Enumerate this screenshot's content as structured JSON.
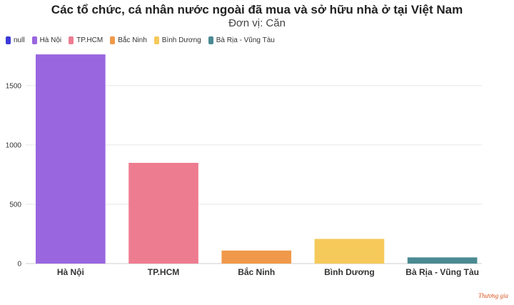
{
  "chart_data": {
    "type": "bar",
    "title": "Các tổ chức, cá nhân nước ngoài đã mua và sở hữu nhà ở tại Việt Nam",
    "subtitle": "Đơn vị: Căn",
    "legend_placement": "top-left",
    "legend": [
      {
        "label": "null",
        "color": "#3b3bd6"
      },
      {
        "label": "Hà Nội",
        "color": "#9966e0"
      },
      {
        "label": "TP.HCM",
        "color": "#ee7c90"
      },
      {
        "label": "Bắc Ninh",
        "color": "#f0994a"
      },
      {
        "label": "Bình Dương",
        "color": "#f5c95a"
      },
      {
        "label": "Bà Rịa - Vũng Tàu",
        "color": "#4a8a92"
      }
    ],
    "categories": [
      "Hà Nội",
      "TP.HCM",
      "Bắc Ninh",
      "Bình Dương",
      "Bà Rịa - Vũng Tàu"
    ],
    "values": [
      1763,
      849,
      110,
      208,
      52
    ],
    "colors": [
      "#9966e0",
      "#ee7c90",
      "#f0994a",
      "#f5c95a",
      "#4a8a92"
    ],
    "yticks": [
      0,
      500,
      1000,
      1500
    ],
    "ylim": [
      0,
      1800
    ],
    "grid": true
  },
  "watermark": "Thương gia"
}
